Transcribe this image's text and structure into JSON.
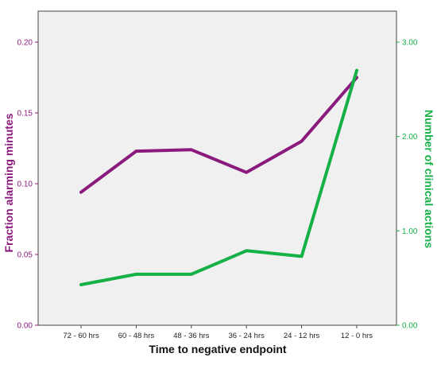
{
  "chart_data": {
    "type": "line",
    "xlabel": "Time to negative endpoint",
    "categories": [
      "72 - 60 hrs",
      "60 - 48 hrs",
      "48 - 36 hrs",
      "36 - 24 hrs",
      "24 - 12 hrs",
      "12 - 0 hrs"
    ],
    "series": [
      {
        "name": "Fraction alarming minutes",
        "axis": "left",
        "color": "#8b1a7d",
        "values": [
          0.094,
          0.123,
          0.124,
          0.108,
          0.13,
          0.175
        ]
      },
      {
        "name": "Number of clinical actions",
        "axis": "right",
        "color": "#15b046",
        "values": [
          0.43,
          0.54,
          0.54,
          0.79,
          0.73,
          2.7
        ]
      }
    ],
    "y_left": {
      "label": "Fraction alarming minutes",
      "ylim": [
        0,
        0.2
      ],
      "ticks": [
        "0.00",
        "0.05",
        "0.10",
        "0.15",
        "0.20"
      ],
      "tick_values": [
        0,
        0.05,
        0.1,
        0.15,
        0.2
      ],
      "color": "#8b1a7d"
    },
    "y_right": {
      "label": "Number of clinical actions",
      "ylim": [
        0,
        3.3
      ],
      "ticks": [
        "0.00",
        "1.00",
        "2.00",
        "3.00"
      ],
      "tick_values": [
        0,
        1,
        2,
        3
      ],
      "color": "#15b046"
    },
    "plot_background": "#f0f0f0",
    "grid": false
  }
}
